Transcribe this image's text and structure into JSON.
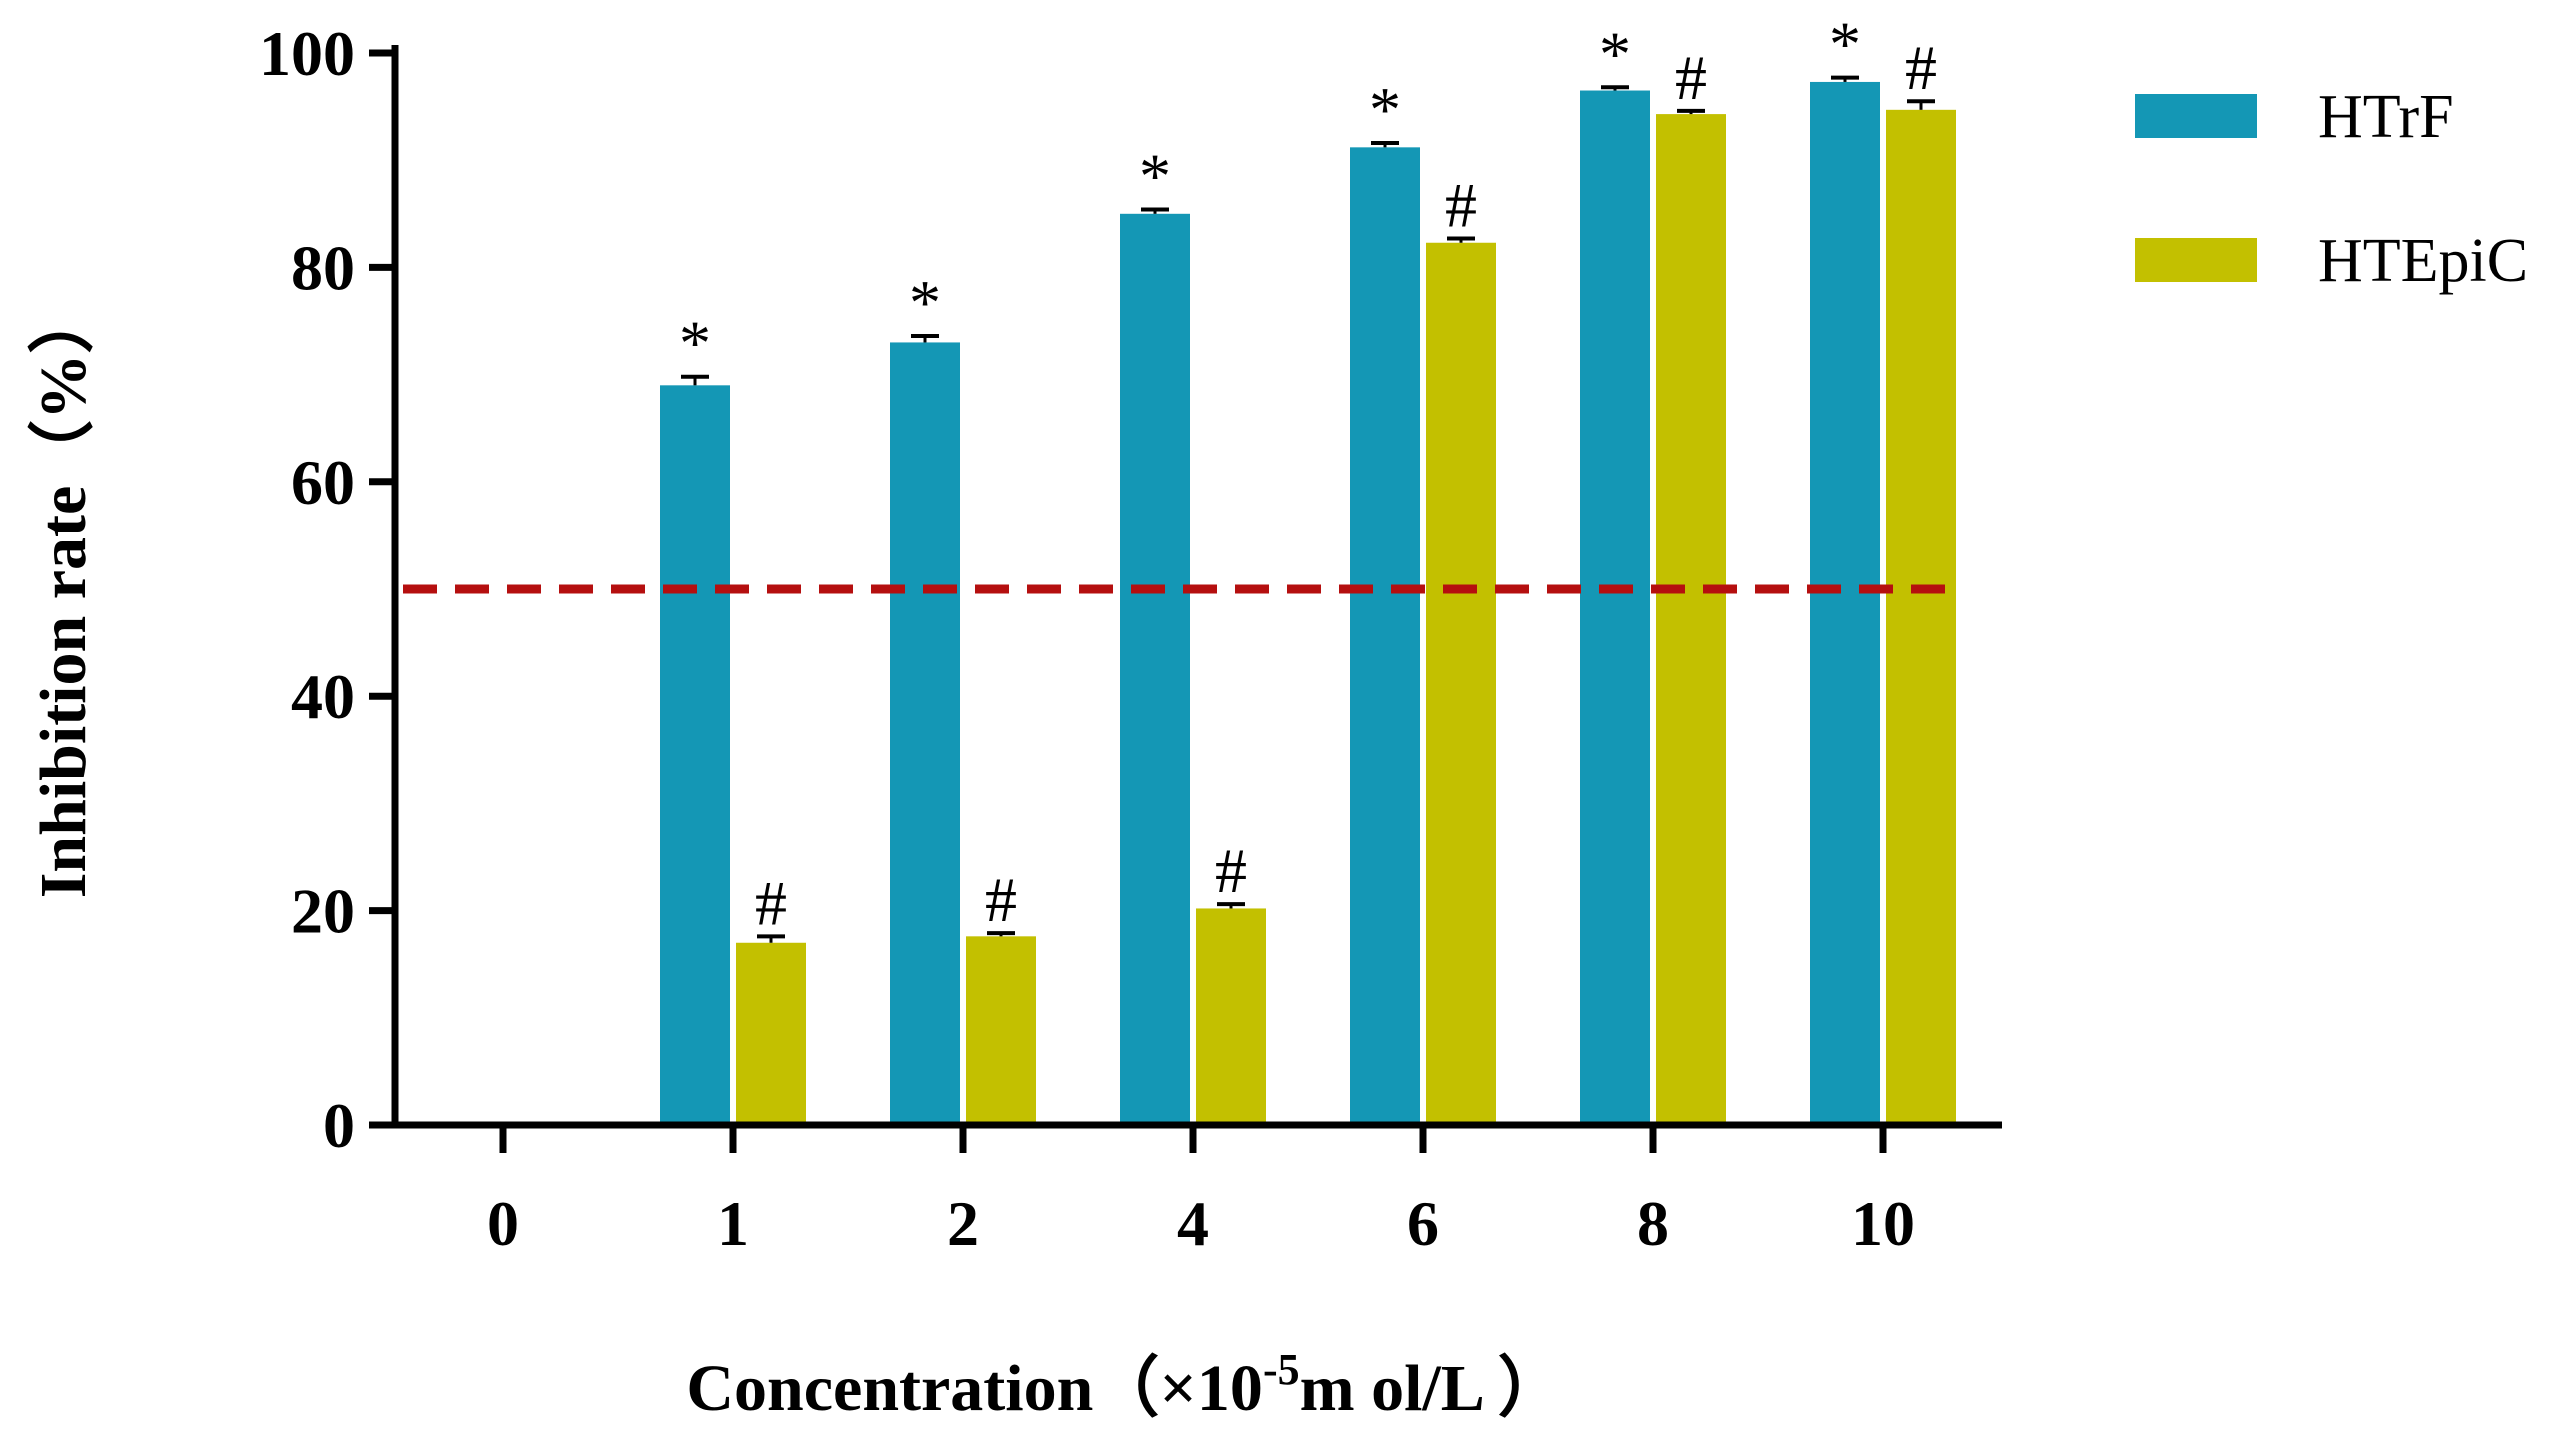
{
  "chart_data": {
    "type": "bar",
    "title": "",
    "xlabel": "Concentration（×10",
    "xlabel_sup": "-5",
    "xlabel_suffix": "m ol/L ）",
    "ylabel": "Inhibition rate（%）",
    "ylim": [
      0,
      100
    ],
    "yticks": [
      "0",
      "20",
      "40",
      "60",
      "80",
      "100"
    ],
    "categories": [
      "0",
      "1",
      "2",
      "4",
      "6",
      "8",
      "10"
    ],
    "series": [
      {
        "name": "HTrF",
        "color": "#1497b5",
        "values": [
          0,
          69.0,
          73.0,
          85.0,
          91.2,
          96.5,
          97.3
        ],
        "errors": [
          0,
          0.8,
          0.6,
          0.4,
          0.4,
          0.3,
          0.4
        ],
        "marker": "*",
        "significant": [
          false,
          true,
          true,
          true,
          true,
          true,
          true
        ]
      },
      {
        "name": "HTEpiC",
        "color": "#c3c000",
        "values": [
          0,
          17.0,
          17.6,
          20.2,
          82.3,
          94.3,
          94.7
        ],
        "errors": [
          0,
          0.6,
          0.3,
          0.4,
          0.4,
          0.3,
          0.8
        ],
        "marker": "#",
        "significant": [
          false,
          true,
          true,
          true,
          true,
          true,
          true
        ]
      }
    ],
    "reference_line": {
      "y": 50,
      "color": "#b50f0f",
      "style": "dashed"
    },
    "grid": false,
    "legend_position": "top-right"
  }
}
